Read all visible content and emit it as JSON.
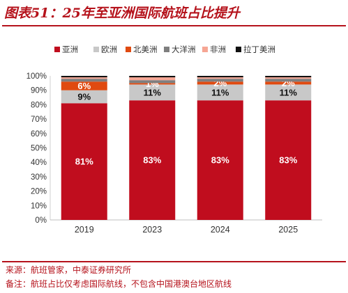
{
  "header": {
    "title": "图表51：25年至亚洲国际航班占比提升"
  },
  "footer": {
    "source": "来源：航班管家，中泰证券研究所",
    "note": "备注：航班占比仅考虑国际航线，不包含中国港澳台地区航线"
  },
  "chart_data": {
    "type": "bar",
    "stacked": true,
    "categories": [
      "2019",
      "2023",
      "2024",
      "2025"
    ],
    "ylim": [
      0,
      100
    ],
    "yticks": [
      "0%",
      "10%",
      "20%",
      "30%",
      "40%",
      "50%",
      "60%",
      "70%",
      "80%",
      "90%",
      "100%"
    ],
    "legend_position": "top",
    "grid": false,
    "series": [
      {
        "name": "亚洲",
        "values": [
          81,
          83,
          83,
          83
        ],
        "color": "#c00d1e",
        "labels": [
          "81%",
          "83%",
          "83%",
          "83%"
        ],
        "label_color": "#ffffff"
      },
      {
        "name": "欧洲",
        "values": [
          9,
          11,
          11,
          11
        ],
        "color": "#c8c8c8",
        "labels": [
          "9%",
          "11%",
          "11%",
          "11%"
        ],
        "label_color": "#111111"
      },
      {
        "name": "北美洲",
        "values": [
          6,
          1,
          2,
          2
        ],
        "color": "#e04a10",
        "labels": [
          "6%",
          "1%",
          "2%",
          "2%"
        ],
        "label_color": "#ffffff"
      },
      {
        "name": "大洋洲",
        "values": [
          2,
          2,
          2,
          2
        ],
        "color": "#7f7f7f",
        "labels": [
          "",
          "",
          "",
          ""
        ],
        "label_color": "#ffffff"
      },
      {
        "name": "非洲",
        "values": [
          1,
          2,
          1,
          1
        ],
        "color": "#f6a694",
        "labels": [
          "",
          "",
          "",
          ""
        ],
        "label_color": "#111111"
      },
      {
        "name": "拉丁美洲",
        "values": [
          1,
          1,
          1,
          1
        ],
        "color": "#111111",
        "labels": [
          "",
          "",
          "",
          ""
        ],
        "label_color": "#ffffff"
      }
    ]
  }
}
